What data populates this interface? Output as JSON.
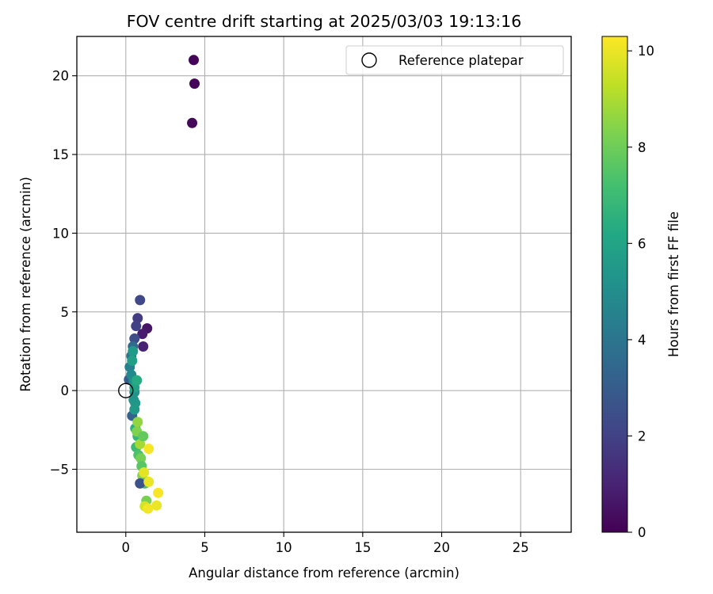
{
  "chart_data": {
    "type": "scatter",
    "title": "FOV centre drift starting at 2025/03/03 19:13:16",
    "xlabel": "Angular distance from reference (arcmin)",
    "ylabel": "Rotation from reference (arcmin)",
    "xlim": [
      -3.1,
      28.2
    ],
    "ylim": [
      -9.0,
      22.5
    ],
    "xticks": [
      0,
      5,
      10,
      15,
      20,
      25
    ],
    "yticks": [
      -5,
      0,
      5,
      10,
      15,
      20
    ],
    "xtick_labels": [
      "0",
      "5",
      "10",
      "15",
      "20",
      "25"
    ],
    "ytick_labels": [
      "−5",
      "0",
      "5",
      "10",
      "15",
      "20"
    ],
    "grid": true,
    "legend": {
      "position": "top-right",
      "entries": [
        "Reference platepar"
      ]
    },
    "reference_point": {
      "x": 0,
      "y": 0,
      "marker": "open-circle"
    },
    "colorbar": {
      "label": "Hours from first FF file",
      "min": 0,
      "max": 10.3,
      "ticks": [
        0,
        2,
        4,
        6,
        8,
        10
      ],
      "tick_labels": [
        "0",
        "2",
        "4",
        "6",
        "8",
        "10"
      ],
      "colormap": "viridis"
    },
    "points": [
      {
        "x": 4.3,
        "y": 21.0,
        "h": 0.1
      },
      {
        "x": 4.35,
        "y": 19.5,
        "h": 0.15
      },
      {
        "x": 4.2,
        "y": 17.0,
        "h": 0.2
      },
      {
        "x": 1.35,
        "y": 3.95,
        "h": 0.6
      },
      {
        "x": 1.05,
        "y": 3.6,
        "h": 0.8
      },
      {
        "x": 1.1,
        "y": 2.8,
        "h": 1.0
      },
      {
        "x": 0.9,
        "y": 5.75,
        "h": 2.2
      },
      {
        "x": 0.75,
        "y": 4.6,
        "h": 1.8
      },
      {
        "x": 0.65,
        "y": 4.1,
        "h": 2.0
      },
      {
        "x": 0.55,
        "y": 3.3,
        "h": 2.4
      },
      {
        "x": 0.45,
        "y": 2.8,
        "h": 3.6
      },
      {
        "x": 0.35,
        "y": 2.2,
        "h": 4.0
      },
      {
        "x": 0.25,
        "y": 1.5,
        "h": 4.4
      },
      {
        "x": 0.2,
        "y": 0.7,
        "h": 3.0
      },
      {
        "x": 0.35,
        "y": 1.0,
        "h": 4.8
      },
      {
        "x": 0.5,
        "y": 0.6,
        "h": 5.1
      },
      {
        "x": 0.55,
        "y": -0.1,
        "h": 5.2
      },
      {
        "x": 0.5,
        "y": -0.6,
        "h": 5.3
      },
      {
        "x": 0.6,
        "y": -0.8,
        "h": 5.4
      },
      {
        "x": 0.4,
        "y": -1.6,
        "h": 3.2
      },
      {
        "x": 0.55,
        "y": -1.2,
        "h": 5.5
      },
      {
        "x": 0.45,
        "y": 2.5,
        "h": 5.6
      },
      {
        "x": 0.4,
        "y": 1.9,
        "h": 5.8
      },
      {
        "x": 0.55,
        "y": 0.2,
        "h": 5.9
      },
      {
        "x": 0.7,
        "y": 0.65,
        "h": 6.3
      },
      {
        "x": 0.6,
        "y": -2.4,
        "h": 6.5
      },
      {
        "x": 0.75,
        "y": -2.9,
        "h": 6.8
      },
      {
        "x": 0.65,
        "y": -3.6,
        "h": 7.0
      },
      {
        "x": 0.8,
        "y": -4.1,
        "h": 7.4
      },
      {
        "x": 0.7,
        "y": -2.6,
        "h": 8.3
      },
      {
        "x": 0.75,
        "y": -2.0,
        "h": 8.6
      },
      {
        "x": 0.9,
        "y": -3.4,
        "h": 8.9
      },
      {
        "x": 1.1,
        "y": -2.9,
        "h": 7.8
      },
      {
        "x": 0.95,
        "y": -4.3,
        "h": 8.1
      },
      {
        "x": 1.0,
        "y": -4.8,
        "h": 7.6
      },
      {
        "x": 1.05,
        "y": -5.4,
        "h": 8.4
      },
      {
        "x": 1.2,
        "y": -5.9,
        "h": 7.2
      },
      {
        "x": 0.9,
        "y": -5.9,
        "h": 2.6
      },
      {
        "x": 1.15,
        "y": -5.2,
        "h": 9.9
      },
      {
        "x": 1.45,
        "y": -3.7,
        "h": 10.2
      },
      {
        "x": 1.45,
        "y": -5.8,
        "h": 10.0
      },
      {
        "x": 1.3,
        "y": -7.0,
        "h": 8.2
      },
      {
        "x": 1.2,
        "y": -7.35,
        "h": 9.6
      },
      {
        "x": 1.4,
        "y": -7.5,
        "h": 10.1
      },
      {
        "x": 1.95,
        "y": -7.3,
        "h": 10.0
      },
      {
        "x": 2.05,
        "y": -6.5,
        "h": 10.2
      }
    ]
  }
}
